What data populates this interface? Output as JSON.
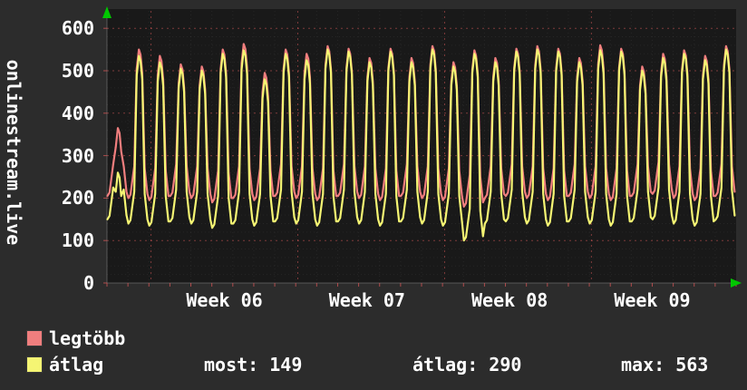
{
  "site": {
    "vertical_label": "onlinestream.live"
  },
  "colors": {
    "background": "#2c2c2c",
    "plot_background": "#191919",
    "grid_major": "#d05555",
    "grid_minor": "#ffffff",
    "text": "#ffffff",
    "arrow": "#00c800",
    "legtobb": "#f07e7e",
    "atlag": "#f5f573"
  },
  "legend": [
    {
      "label": "legtöbb",
      "color": "#f07e7e"
    },
    {
      "label": "átlag",
      "color": "#f5f573"
    }
  ],
  "stats_display": [
    "most: 149",
    "átlag: 290",
    "max: 563"
  ],
  "chart_data": {
    "type": "line",
    "title": "",
    "vertical_label": "onlinestream.live",
    "ylim": [
      0,
      600
    ],
    "yticks": [
      0,
      100,
      200,
      300,
      400,
      500,
      600
    ],
    "x_range_days": [
      0,
      30
    ],
    "x_tick_labels": [
      "Week 06",
      "Week 07",
      "Week 08",
      "Week 09"
    ],
    "week_label_day_centers": [
      5.6,
      12.4,
      19.2,
      26.0
    ],
    "week_gridline_days": [
      2.1,
      9.1,
      16.1,
      23.1
    ],
    "grid": {
      "major": "red dashed",
      "minor": "faint dotted"
    },
    "legend_position": "bottom-left",
    "series": [
      {
        "name": "legtöbb",
        "color": "#f07e7e",
        "daily_peaks": [
          365,
          550,
          535,
          515,
          510,
          550,
          563,
          495,
          550,
          540,
          558,
          552,
          530,
          552,
          530,
          558,
          520,
          548,
          530,
          552,
          558,
          552,
          530,
          560,
          552,
          510,
          540,
          548,
          535,
          558
        ],
        "daily_lows": [
          205,
          200,
          195,
          205,
          200,
          190,
          200,
          195,
          205,
          200,
          195,
          205,
          200,
          195,
          205,
          200,
          195,
          180,
          200,
          205,
          200,
          195,
          205,
          200,
          195,
          205,
          210,
          200,
          195,
          205
        ]
      },
      {
        "name": "átlag",
        "color": "#f5f573",
        "daily_peaks": [
          260,
          535,
          520,
          505,
          500,
          540,
          548,
          480,
          540,
          525,
          550,
          545,
          520,
          545,
          520,
          550,
          510,
          540,
          520,
          545,
          550,
          545,
          520,
          548,
          545,
          500,
          530,
          540,
          525,
          550
        ],
        "daily_lows": [
          150,
          140,
          135,
          145,
          140,
          130,
          140,
          135,
          145,
          140,
          135,
          145,
          140,
          135,
          145,
          140,
          135,
          100,
          140,
          145,
          140,
          135,
          145,
          140,
          135,
          145,
          150,
          140,
          135,
          149
        ]
      }
    ],
    "summary": {
      "most": 149,
      "atlag": 290,
      "max": 563
    }
  }
}
